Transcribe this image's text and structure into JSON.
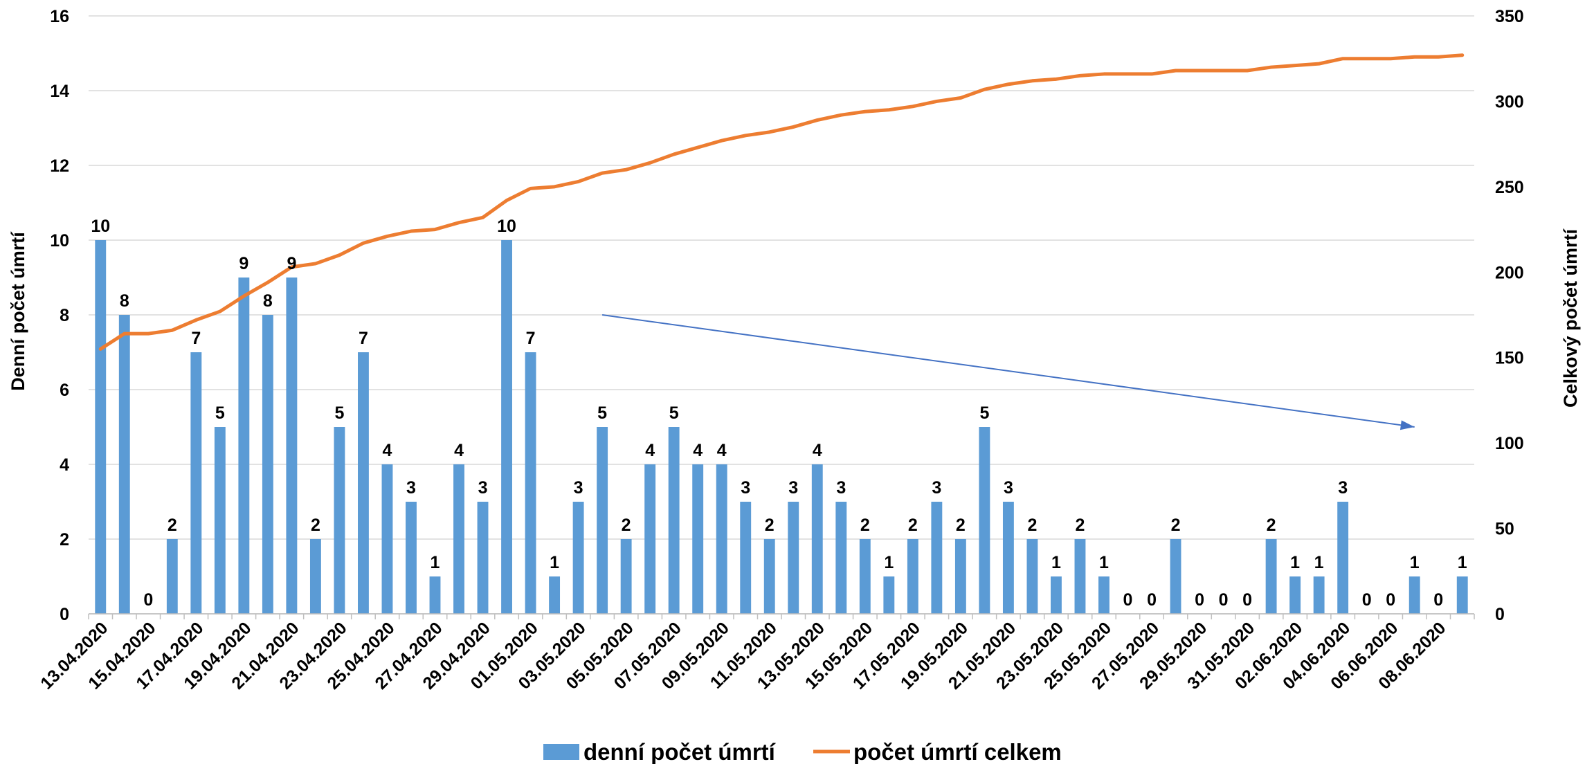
{
  "chart_data": {
    "type": "bar+line",
    "categories": [
      "13.04.2020",
      "14.04.2020",
      "15.04.2020",
      "16.04.2020",
      "17.04.2020",
      "18.04.2020",
      "19.04.2020",
      "20.04.2020",
      "21.04.2020",
      "22.04.2020",
      "23.04.2020",
      "24.04.2020",
      "25.04.2020",
      "26.04.2020",
      "27.04.2020",
      "28.04.2020",
      "29.04.2020",
      "30.04.2020",
      "01.05.2020",
      "02.05.2020",
      "03.05.2020",
      "04.05.2020",
      "05.05.2020",
      "06.05.2020",
      "07.05.2020",
      "08.05.2020",
      "09.05.2020",
      "10.05.2020",
      "11.05.2020",
      "12.05.2020",
      "13.05.2020",
      "14.05.2020",
      "15.05.2020",
      "16.05.2020",
      "17.05.2020",
      "18.05.2020",
      "19.05.2020",
      "20.05.2020",
      "21.05.2020",
      "22.05.2020",
      "23.05.2020",
      "24.05.2020",
      "25.05.2020",
      "26.05.2020",
      "27.05.2020",
      "28.05.2020",
      "29.05.2020",
      "30.05.2020",
      "31.05.2020",
      "01.06.2020",
      "02.06.2020",
      "03.06.2020",
      "04.06.2020",
      "05.06.2020",
      "06.06.2020",
      "07.06.2020",
      "08.06.2020",
      "09.06.2020"
    ],
    "series": [
      {
        "name": "denní počet úmrtí",
        "type": "bar",
        "axis": "left",
        "color": "#5B9BD5",
        "values": [
          10,
          8,
          0,
          2,
          7,
          5,
          9,
          8,
          9,
          2,
          5,
          7,
          4,
          3,
          1,
          4,
          3,
          10,
          7,
          1,
          3,
          5,
          2,
          4,
          5,
          4,
          4,
          3,
          2,
          3,
          4,
          3,
          2,
          1,
          2,
          3,
          2,
          5,
          3,
          2,
          1,
          2,
          1,
          0,
          0,
          2,
          0,
          0,
          0,
          2,
          1,
          1,
          3,
          0,
          0,
          1,
          0,
          1
        ]
      },
      {
        "name": "počet úmrtí celkem",
        "type": "line",
        "axis": "right",
        "color": "#ED7D31",
        "values": [
          155,
          164,
          164,
          166,
          172,
          177,
          186,
          194,
          203,
          205,
          210,
          217,
          221,
          224,
          225,
          229,
          232,
          242,
          249,
          250,
          253,
          258,
          260,
          264,
          269,
          273,
          277,
          280,
          282,
          285,
          289,
          292,
          294,
          295,
          297,
          300,
          302,
          307,
          310,
          312,
          313,
          315,
          316,
          316,
          316,
          318,
          318,
          318,
          318,
          320,
          321,
          322,
          325,
          325,
          325,
          326,
          326,
          327
        ]
      }
    ],
    "x_tick_labels": [
      "13.04.2020",
      "15.04.2020",
      "17.04.2020",
      "19.04.2020",
      "21.04.2020",
      "23.04.2020",
      "25.04.2020",
      "27.04.2020",
      "29.04.2020",
      "01.05.2020",
      "03.05.2020",
      "05.05.2020",
      "07.05.2020",
      "09.05.2020",
      "11.05.2020",
      "13.05.2020",
      "15.05.2020",
      "17.05.2020",
      "19.05.2020",
      "21.05.2020",
      "23.05.2020",
      "25.05.2020",
      "27.05.2020",
      "29.05.2020",
      "31.05.2020",
      "02.06.2020",
      "04.06.2020",
      "06.06.2020",
      "08.06.2020"
    ],
    "y_left": {
      "label": "Denní počet úmrtí",
      "min": 0,
      "max": 16,
      "step": 2
    },
    "y_right": {
      "label": "Celkový počet úmrtí",
      "min": 0,
      "max": 350,
      "step": 50
    },
    "grid": true,
    "legend": {
      "position": "bottom",
      "entries": [
        "denní počet úmrtí",
        "počet úmrtí celkem"
      ]
    },
    "annotations": [
      {
        "type": "trend-arrow",
        "color": "#4472C4",
        "from": {
          "x": "04.05.2020",
          "y": 8
        },
        "to": {
          "x": "07.06.2020",
          "y": 5
        }
      }
    ]
  }
}
